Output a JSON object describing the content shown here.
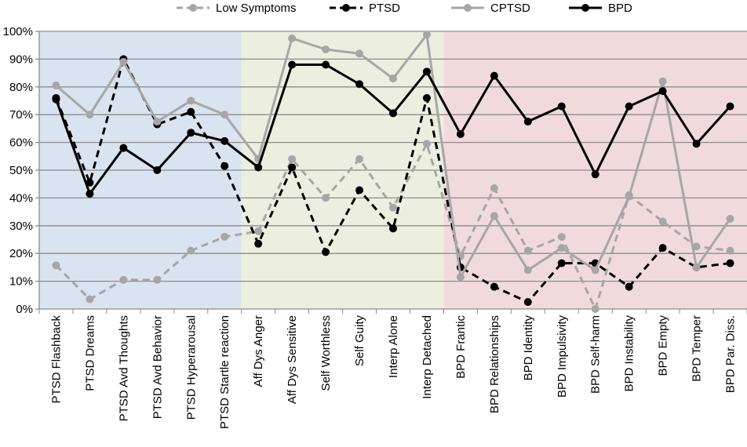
{
  "chart_data": {
    "type": "line",
    "title": "",
    "xlabel": "",
    "ylabel": "",
    "ylim": [
      0,
      100
    ],
    "yticks": [
      "0%",
      "10%",
      "20%",
      "30%",
      "40%",
      "50%",
      "60%",
      "70%",
      "80%",
      "90%",
      "100%"
    ],
    "grid": true,
    "legend_position": "top",
    "categories": [
      "PTSD Flashback",
      "PTSD Dreams",
      "PTSD Avd Thoughts",
      "PTSD Avd Behavior",
      "PTSD Hyperarousal",
      "PTSD Startle reaction",
      "Aff Dys Anger",
      "Aff Dys Sensitive",
      "Self Worthless",
      "Self Guity",
      "Interp Alone",
      "Interp Detached",
      "BPD Frantic",
      "BPD Relationships",
      "BPD Identity",
      "BPD Impulsivity",
      "BPD Self-harm",
      "BPD Instability",
      "BPD Empty",
      "BPD Temper",
      "BPD Par. Diss."
    ],
    "bands": [
      {
        "from": 0,
        "to": 6,
        "color": "#dae3f0"
      },
      {
        "from": 6,
        "to": 12,
        "color": "#ecefdf"
      },
      {
        "from": 12,
        "to": 21,
        "color": "#f1dadc"
      }
    ],
    "series": [
      {
        "name": "Low Symptoms",
        "color": "#a6a6a6",
        "dashed": true,
        "values": [
          15.7,
          3.5,
          10.5,
          10.5,
          21,
          26,
          28,
          54,
          40,
          54,
          36.5,
          59.5,
          19,
          43.5,
          21,
          26,
          0,
          41,
          31.5,
          22.5,
          21
        ]
      },
      {
        "name": "PTSD",
        "color": "#000000",
        "dashed": true,
        "values": [
          76,
          45.5,
          90,
          66.5,
          71,
          51.5,
          23.5,
          51,
          20.5,
          42.8,
          29,
          76,
          15,
          8,
          2.5,
          16.5,
          16.5,
          8,
          22,
          15,
          16.5
        ]
      },
      {
        "name": "CPTSD",
        "color": "#a6a6a6",
        "dashed": false,
        "values": [
          80.5,
          70,
          89,
          67.5,
          75,
          70,
          54,
          97.5,
          93.5,
          92,
          83,
          98.8,
          11.5,
          33.5,
          14,
          22,
          14,
          40.5,
          82,
          15,
          32.5
        ]
      },
      {
        "name": "BPD",
        "color": "#000000",
        "dashed": false,
        "values": [
          75.5,
          41.5,
          58,
          50,
          63.5,
          60.5,
          51,
          88,
          88,
          81,
          70.5,
          85.5,
          63,
          84,
          67.5,
          73,
          48.5,
          73,
          78.5,
          59.5,
          73
        ]
      }
    ]
  }
}
